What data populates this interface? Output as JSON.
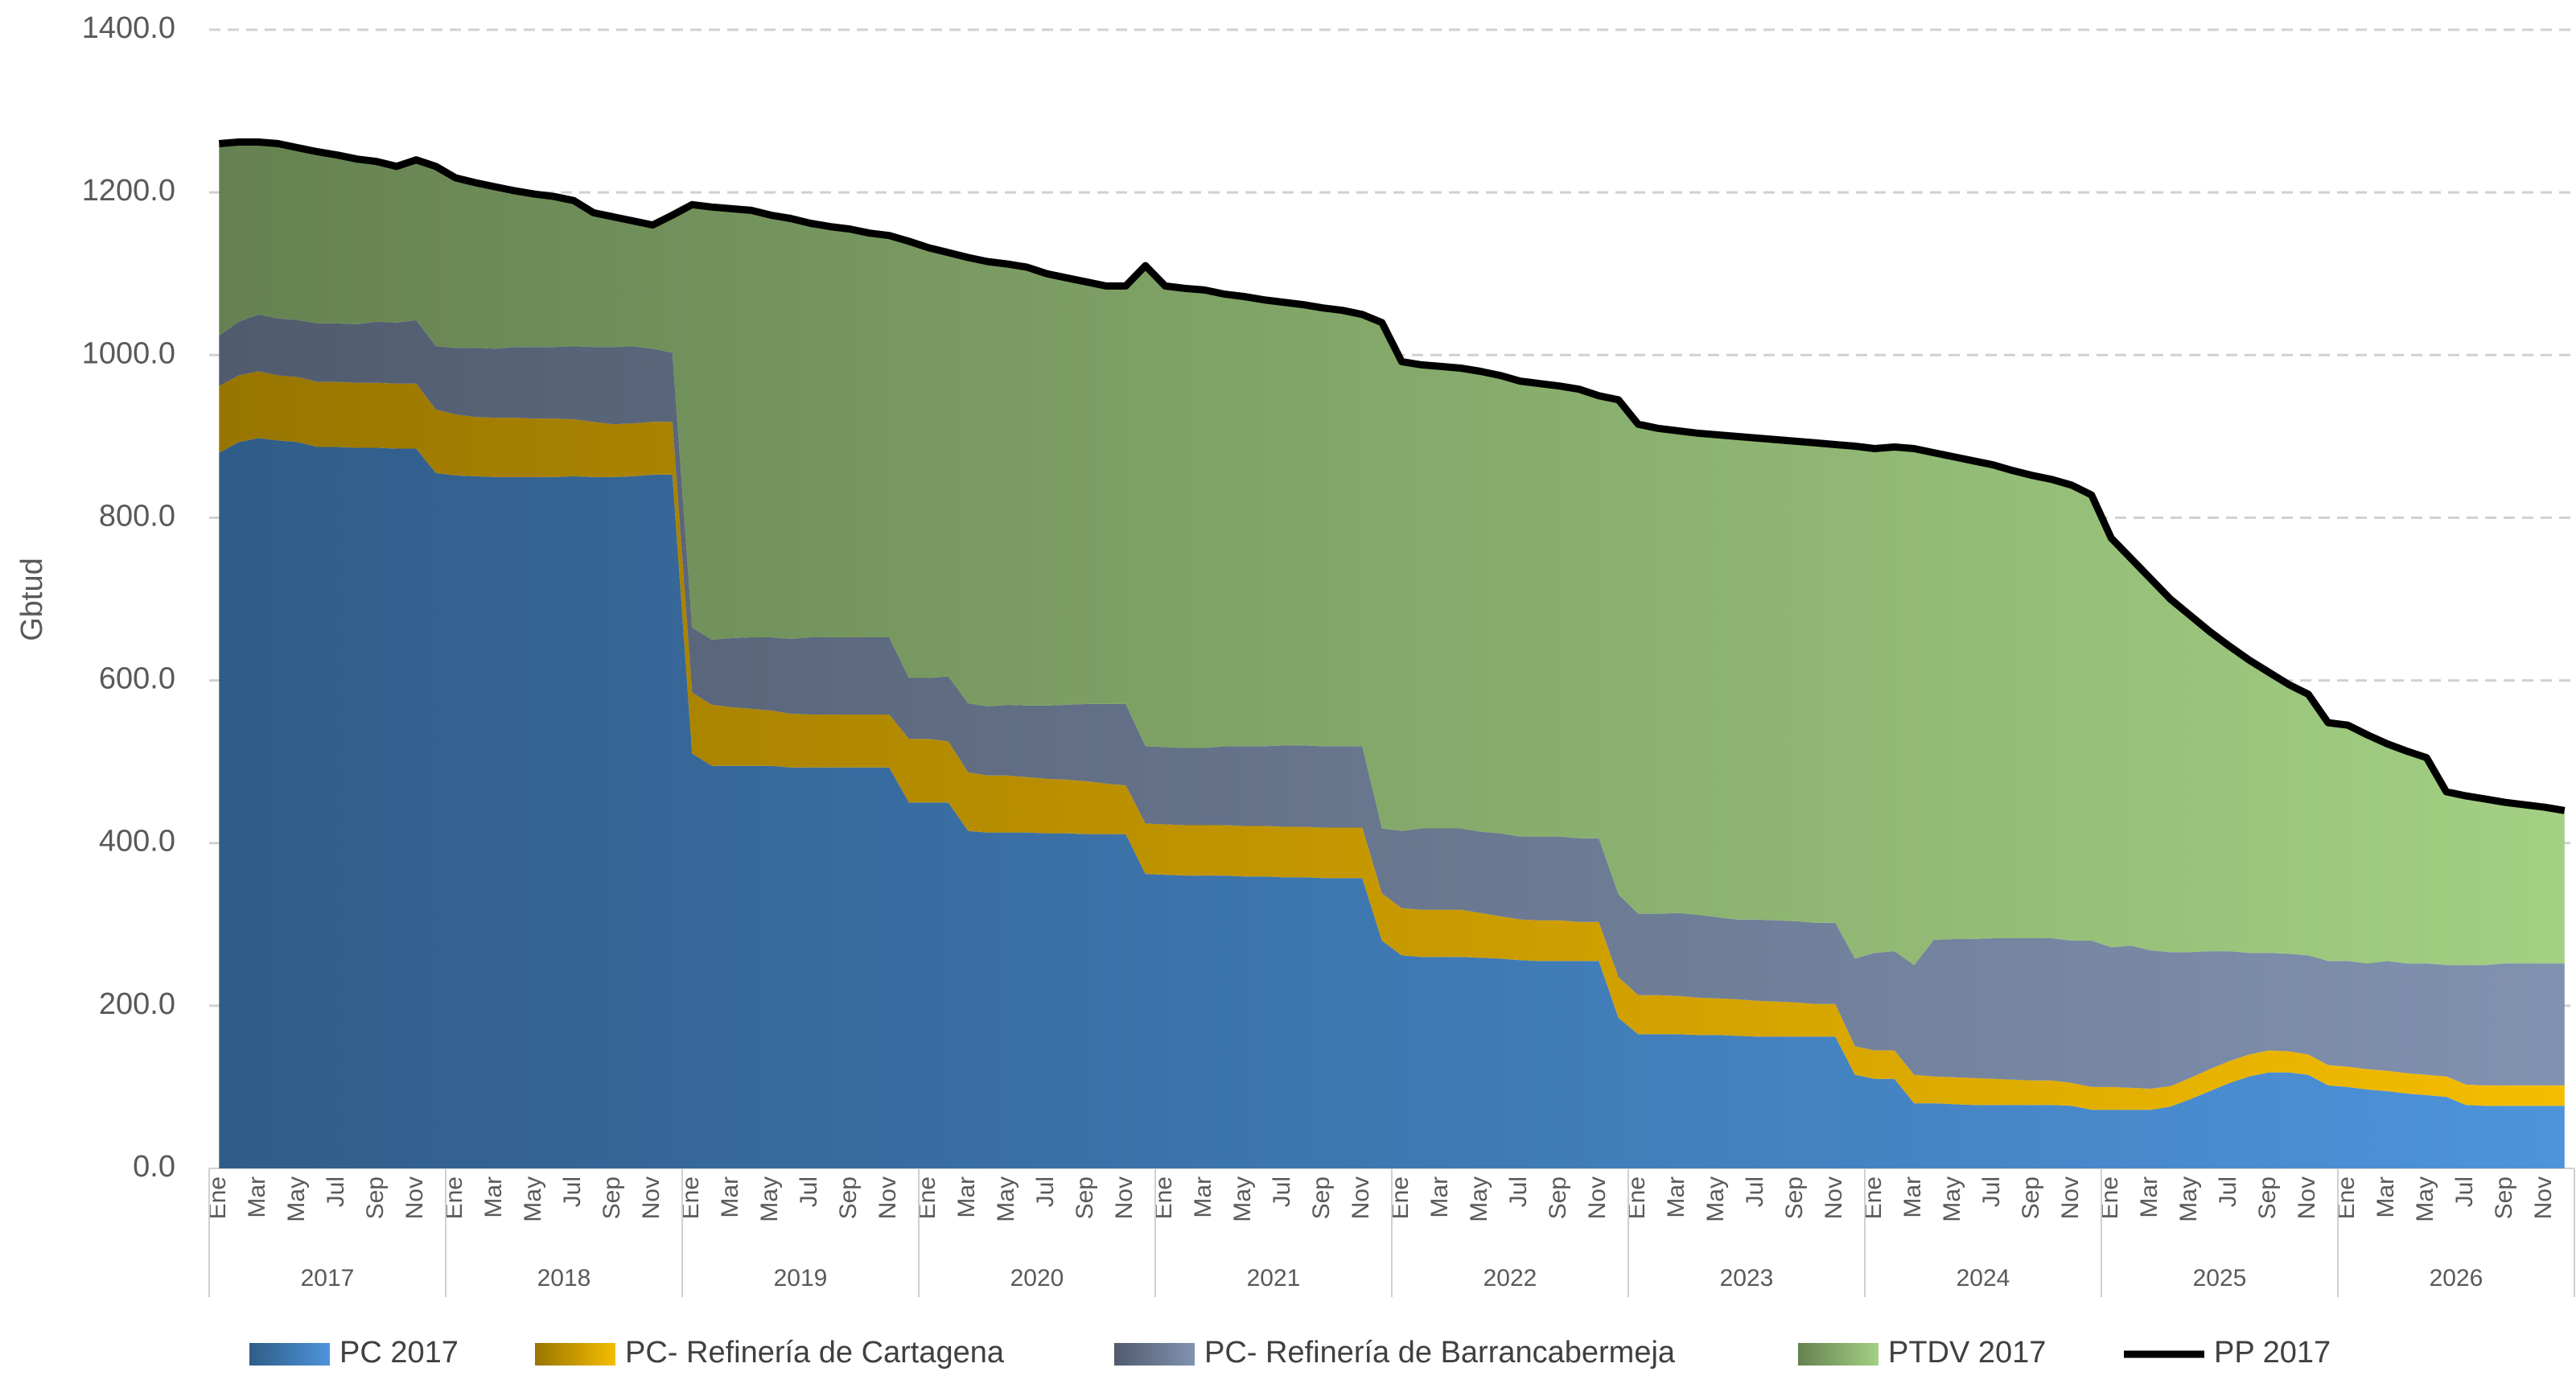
{
  "chart_data": {
    "type": "area",
    "y_label": "Gbtud",
    "categories": [
      "Ene",
      null,
      "Mar",
      null,
      "May",
      null,
      "Jul",
      null,
      "Sep",
      null,
      "Nov",
      null,
      "Ene",
      null,
      "Mar",
      null,
      "May",
      null,
      "Jul",
      null,
      "Sep",
      null,
      "Nov",
      null,
      "Ene",
      null,
      "Mar",
      null,
      "May",
      null,
      "Jul",
      null,
      "Sep",
      null,
      "Nov",
      null,
      "Ene",
      null,
      "Mar",
      null,
      "May",
      null,
      "Jul",
      null,
      "Sep",
      null,
      "Nov",
      null,
      "Ene",
      null,
      "Mar",
      null,
      "May",
      null,
      "Jul",
      null,
      "Sep",
      null,
      "Nov",
      null,
      "Ene",
      null,
      "Mar",
      null,
      "May",
      null,
      "Jul",
      null,
      "Sep",
      null,
      "Nov",
      null,
      "Ene",
      null,
      "Mar",
      null,
      "May",
      null,
      "Jul",
      null,
      "Sep",
      null,
      "Nov",
      null,
      "Ene",
      null,
      "Mar",
      null,
      "May",
      null,
      "Jul",
      null,
      "Sep",
      null,
      "Nov",
      null,
      "Ene",
      null,
      "Mar",
      null,
      "May",
      null,
      "Jul",
      null,
      "Sep",
      null,
      "Nov",
      null,
      "Ene",
      null,
      "Mar",
      null,
      "May",
      null,
      "Jul",
      null,
      "Sep",
      null,
      "Nov",
      null
    ],
    "years": [
      "2017",
      "2018",
      "2019",
      "2020",
      "2021",
      "2022",
      "2023",
      "2024",
      "2025",
      "2026"
    ],
    "ylim": [
      0,
      1400
    ],
    "yticks": [
      {
        "value": 0,
        "label": "0.0"
      },
      {
        "value": 200,
        "label": "200.0"
      },
      {
        "value": 400,
        "label": "400.0"
      },
      {
        "value": 600,
        "label": "600.0"
      },
      {
        "value": 800,
        "label": "800.0"
      },
      {
        "value": 1000,
        "label": "1000.0"
      },
      {
        "value": 1200,
        "label": "1200.0"
      },
      {
        "value": 1400,
        "label": "1400.0"
      }
    ],
    "grid": true,
    "stacked": true,
    "legend": "bottom",
    "series": [
      {
        "name": "PC 2017",
        "color": "#4d94db",
        "values": [
          880,
          893,
          898,
          895,
          893,
          887,
          887,
          886,
          886,
          885,
          885,
          855,
          852,
          851,
          850,
          850,
          850,
          850,
          851,
          850,
          850,
          851,
          853,
          853,
          510,
          495,
          495,
          495,
          495,
          493,
          493,
          493,
          493,
          493,
          493,
          450,
          450,
          450,
          415,
          413,
          413,
          413,
          412,
          412,
          411,
          411,
          411,
          362,
          361,
          360,
          360,
          360,
          359,
          359,
          358,
          358,
          357,
          357,
          357,
          280,
          262,
          260,
          260,
          260,
          259,
          258,
          256,
          255,
          255,
          255,
          255,
          185,
          165,
          165,
          165,
          164,
          164,
          163,
          162,
          162,
          162,
          162,
          162,
          115,
          110,
          110,
          80,
          80,
          79,
          78,
          78,
          78,
          78,
          78,
          77,
          72,
          72,
          72,
          72,
          76,
          85,
          95,
          105,
          113,
          118,
          118,
          115,
          102,
          100,
          97,
          95,
          92,
          90,
          88,
          78,
          77,
          77,
          77,
          77,
          77
        ]
      },
      {
        "name": "PC- Refinería de Cartagena",
        "color": "#f5bd00",
        "values": [
          82,
          82,
          82,
          80,
          80,
          80,
          80,
          80,
          80,
          80,
          80,
          78,
          75,
          73,
          73,
          73,
          72,
          72,
          70,
          68,
          65,
          65,
          65,
          65,
          75,
          75,
          72,
          70,
          68,
          66,
          65,
          65,
          65,
          65,
          65,
          78,
          78,
          75,
          72,
          70,
          70,
          68,
          67,
          66,
          65,
          62,
          60,
          62,
          62,
          62,
          62,
          62,
          62,
          62,
          62,
          62,
          62,
          62,
          62,
          58,
          58,
          58,
          58,
          58,
          55,
          52,
          50,
          50,
          50,
          48,
          48,
          50,
          48,
          48,
          47,
          46,
          45,
          45,
          44,
          43,
          42,
          40,
          40,
          35,
          35,
          35,
          35,
          33,
          33,
          33,
          32,
          31,
          30,
          30,
          28,
          28,
          28,
          27,
          26,
          25,
          26,
          27,
          27,
          27,
          27,
          26,
          25,
          25,
          25,
          25,
          25,
          25,
          25,
          25,
          25,
          25,
          25,
          25,
          25,
          25
        ]
      },
      {
        "name": "PC- Refinería de Barrancabermeja",
        "color": "#8192b0",
        "values": [
          62,
          66,
          70,
          70,
          70,
          72,
          72,
          72,
          75,
          75,
          78,
          78,
          82,
          85,
          85,
          87,
          88,
          88,
          90,
          92,
          95,
          95,
          90,
          85,
          80,
          80,
          85,
          88,
          90,
          92,
          95,
          95,
          95,
          95,
          95,
          75,
          75,
          80,
          85,
          85,
          87,
          88,
          90,
          92,
          95,
          98,
          100,
          95,
          95,
          95,
          95,
          97,
          98,
          98,
          100,
          100,
          100,
          100,
          100,
          80,
          95,
          100,
          100,
          100,
          100,
          102,
          102,
          103,
          103,
          103,
          103,
          102,
          100,
          100,
          102,
          102,
          100,
          98,
          100,
          100,
          100,
          100,
          100,
          108,
          120,
          122,
          135,
          168,
          170,
          171,
          173,
          174,
          175,
          175,
          175,
          180,
          172,
          175,
          170,
          165,
          155,
          145,
          135,
          125,
          120,
          120,
          122,
          128,
          130,
          130,
          135,
          135,
          137,
          137,
          147,
          148,
          150,
          150,
          150,
          150
        ]
      },
      {
        "name": "PTDV 2017",
        "color": "#a3d083",
        "values": [
          236,
          221,
          212,
          215,
          212,
          211,
          207,
          203,
          197,
          192,
          197,
          221,
          209,
          203,
          199,
          192,
          188,
          185,
          179,
          165,
          160,
          154,
          152,
          169,
          520,
          532,
          528,
          525,
          519,
          517,
          509,
          505,
          502,
          497,
          494,
          537,
          529,
          521,
          548,
          547,
          542,
          539,
          531,
          525,
          519,
          514,
          514,
          591,
          567,
          565,
          563,
          556,
          553,
          549,
          545,
          542,
          539,
          536,
          531,
          622,
          577,
          570,
          568,
          566,
          566,
          563,
          560,
          557,
          554,
          552,
          544,
          608,
          602,
          597,
          593,
          592,
          593,
          594,
          592,
          591,
          590,
          590,
          588,
          630,
          620,
          620,
          635,
          599,
          593,
          588,
          582,
          575,
          569,
          564,
          560,
          548,
          503,
          476,
          457,
          434,
          414,
          393,
          375,
          360,
          345,
          331,
          321,
          293,
          290,
          281,
          267,
          261,
          253,
          213,
          208,
          204,
          198,
          195,
          192,
          188
        ]
      },
      {
        "name": "PP 2017",
        "type": "line",
        "color": "#000000",
        "values": [
          1260,
          1262,
          1262,
          1260,
          1255,
          1250,
          1246,
          1241,
          1238,
          1232,
          1240,
          1232,
          1218,
          1212,
          1207,
          1202,
          1198,
          1195,
          1190,
          1175,
          1170,
          1165,
          1160,
          1172,
          1185,
          1182,
          1180,
          1178,
          1172,
          1168,
          1162,
          1158,
          1155,
          1150,
          1147,
          1140,
          1132,
          1126,
          1120,
          1115,
          1112,
          1108,
          1100,
          1095,
          1090,
          1085,
          1085,
          1110,
          1085,
          1082,
          1080,
          1075,
          1072,
          1068,
          1065,
          1062,
          1058,
          1055,
          1050,
          1040,
          992,
          988,
          986,
          984,
          980,
          975,
          968,
          965,
          962,
          958,
          950,
          945,
          915,
          910,
          907,
          904,
          902,
          900,
          898,
          896,
          894,
          892,
          890,
          888,
          885,
          887,
          885,
          880,
          875,
          870,
          865,
          858,
          852,
          847,
          840,
          828,
          775,
          750,
          725,
          700,
          680,
          660,
          642,
          625,
          610,
          595,
          583,
          548,
          545,
          533,
          522,
          513,
          505,
          463,
          458,
          454,
          450,
          447,
          444,
          440
        ]
      }
    ]
  }
}
